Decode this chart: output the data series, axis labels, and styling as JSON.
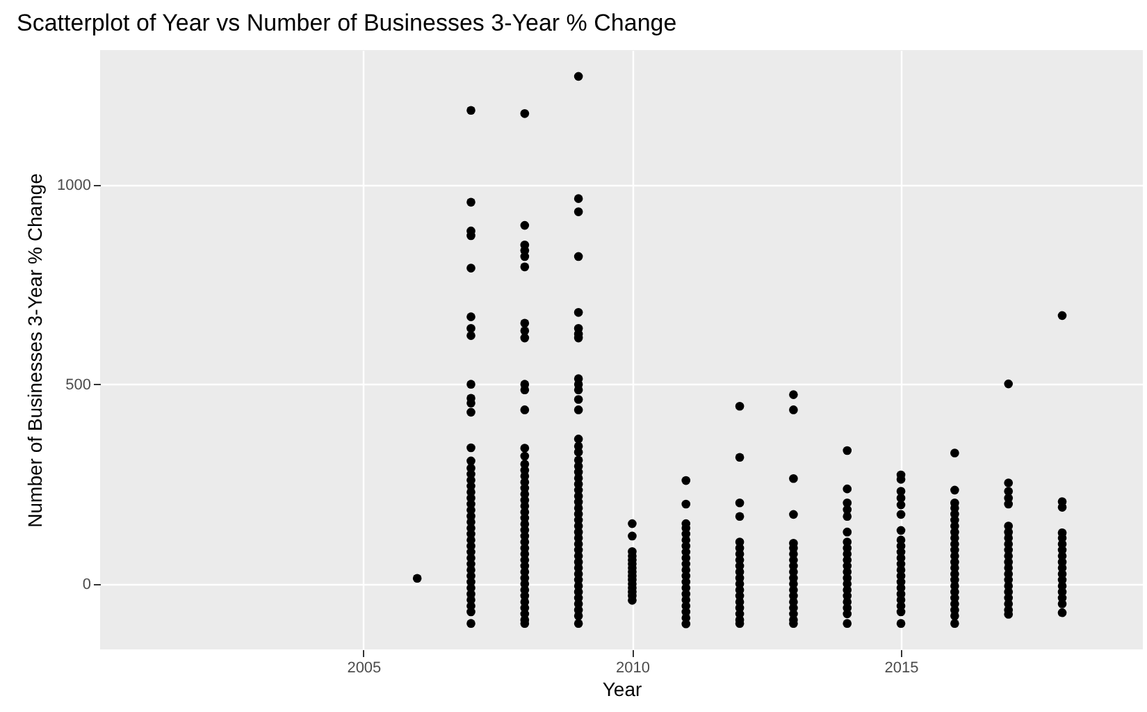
{
  "chart_data": {
    "type": "scatter",
    "title": "Scatterplot of Year vs Number of Businesses 3-Year % Change",
    "xlabel": "Year",
    "ylabel": "Number of Businesses 3-Year % Change",
    "xlim": [
      2000.1,
      2019.5
    ],
    "xticks": [
      2005,
      2010,
      2015
    ],
    "ylim": [
      -164,
      1337
    ],
    "yticks": [
      0,
      500,
      1000
    ],
    "grid": true,
    "marker": "circle",
    "series": [
      {
        "color": "#000000",
        "x": [
          2006
        ],
        "values": [
          14
        ]
      },
      {
        "color": "#000000",
        "x": [
          2007,
          2007,
          2007,
          2007,
          2007,
          2007,
          2007,
          2007,
          2007,
          2007,
          2007,
          2007,
          2007,
          2007,
          2007,
          2007,
          2007,
          2007,
          2007,
          2007,
          2007,
          2007,
          2007,
          2007,
          2007,
          2007,
          2007,
          2007,
          2007,
          2007,
          2007,
          2007,
          2007,
          2007,
          2007,
          2007,
          2007,
          2007,
          2007,
          2007
        ],
        "values": [
          1186,
          956,
          884,
          872,
          791,
          669,
          640,
          622,
          500,
          465,
          453,
          430,
          341,
          308,
          290,
          275,
          260,
          245,
          230,
          215,
          200,
          185,
          170,
          155,
          140,
          125,
          110,
          95,
          80,
          65,
          50,
          35,
          20,
          5,
          -10,
          -25,
          -40,
          -55,
          -70,
          -99
        ]
      },
      {
        "color": "#000000",
        "x": [
          2008,
          2008,
          2008,
          2008,
          2008,
          2008,
          2008,
          2008,
          2008,
          2008,
          2008,
          2008,
          2008,
          2008,
          2008,
          2008,
          2008,
          2008,
          2008,
          2008,
          2008,
          2008,
          2008,
          2008,
          2008,
          2008,
          2008,
          2008,
          2008,
          2008,
          2008,
          2008,
          2008,
          2008,
          2008,
          2008,
          2008,
          2008,
          2008,
          2008,
          2008,
          2008
        ],
        "values": [
          1178,
          898,
          849,
          835,
          820,
          794,
          653,
          634,
          616,
          500,
          486,
          436,
          340,
          320,
          300,
          285,
          270,
          255,
          240,
          225,
          210,
          195,
          180,
          165,
          150,
          135,
          120,
          105,
          90,
          75,
          60,
          45,
          30,
          15,
          0,
          -15,
          -30,
          -45,
          -60,
          -75,
          -90,
          -99
        ]
      },
      {
        "color": "#000000",
        "x": [
          2009,
          2009,
          2009,
          2009,
          2009,
          2009,
          2009,
          2009,
          2009,
          2009,
          2009,
          2009,
          2009,
          2009,
          2009,
          2009,
          2009,
          2009,
          2009,
          2009,
          2009,
          2009,
          2009,
          2009,
          2009,
          2009,
          2009,
          2009,
          2009,
          2009,
          2009,
          2009,
          2009,
          2009,
          2009,
          2009,
          2009,
          2009,
          2009,
          2009,
          2009,
          2009,
          2009,
          2009
        ],
        "values": [
          1271,
          965,
          932,
          820,
          680,
          640,
          626,
          616,
          514,
          500,
          486,
          462,
          436,
          363,
          345,
          330,
          310,
          295,
          280,
          265,
          250,
          235,
          220,
          205,
          190,
          175,
          160,
          145,
          130,
          115,
          100,
          85,
          70,
          55,
          40,
          25,
          10,
          -5,
          -20,
          -35,
          -50,
          -65,
          -80,
          -99
        ]
      },
      {
        "color": "#000000",
        "x": [
          2010,
          2010,
          2010,
          2010,
          2010,
          2010,
          2010,
          2010,
          2010,
          2010,
          2010,
          2010,
          2010,
          2010,
          2010
        ],
        "values": [
          151,
          120,
          81,
          70,
          60,
          50,
          40,
          30,
          20,
          10,
          0,
          -10,
          -20,
          -30,
          -41
        ]
      },
      {
        "color": "#000000",
        "x": [
          2011,
          2011,
          2011,
          2011,
          2011,
          2011,
          2011,
          2011,
          2011,
          2011,
          2011,
          2011,
          2011,
          2011,
          2011,
          2011,
          2011,
          2011,
          2011,
          2011
        ],
        "values": [
          259,
          200,
          151,
          140,
          125,
          110,
          95,
          80,
          65,
          50,
          35,
          20,
          5,
          -10,
          -25,
          -40,
          -55,
          -70,
          -85,
          -100
        ]
      },
      {
        "color": "#000000",
        "x": [
          2012,
          2012,
          2012,
          2012,
          2012,
          2012,
          2012,
          2012,
          2012,
          2012,
          2012,
          2012,
          2012,
          2012,
          2012,
          2012,
          2012,
          2012,
          2012
        ],
        "values": [
          445,
          317,
          203,
          169,
          105,
          90,
          75,
          60,
          45,
          30,
          15,
          0,
          -15,
          -30,
          -45,
          -60,
          -75,
          -90,
          -99
        ]
      },
      {
        "color": "#000000",
        "x": [
          2013,
          2013,
          2013,
          2013,
          2013,
          2013,
          2013,
          2013,
          2013,
          2013,
          2013,
          2013,
          2013,
          2013,
          2013,
          2013,
          2013,
          2013,
          2013
        ],
        "values": [
          474,
          436,
          264,
          174,
          102,
          90,
          75,
          60,
          45,
          30,
          15,
          0,
          -15,
          -30,
          -45,
          -60,
          -75,
          -90,
          -99
        ]
      },
      {
        "color": "#000000",
        "x": [
          2014,
          2014,
          2014,
          2014,
          2014,
          2014,
          2014,
          2014,
          2014,
          2014,
          2014,
          2014,
          2014,
          2014,
          2014,
          2014,
          2014,
          2014,
          2014,
          2014
        ],
        "values": [
          334,
          238,
          203,
          186,
          169,
          130,
          105,
          90,
          75,
          60,
          45,
          30,
          15,
          0,
          -15,
          -30,
          -45,
          -60,
          -75,
          -99
        ]
      },
      {
        "color": "#000000",
        "x": [
          2015,
          2015,
          2015,
          2015,
          2015,
          2015,
          2015,
          2015,
          2015,
          2015,
          2015,
          2015,
          2015,
          2015,
          2015,
          2015,
          2015,
          2015,
          2015,
          2015,
          2015
        ],
        "values": [
          273,
          262,
          232,
          215,
          198,
          174,
          134,
          110,
          95,
          80,
          65,
          50,
          35,
          20,
          5,
          -10,
          -25,
          -40,
          -55,
          -70,
          -99
        ]
      },
      {
        "color": "#000000",
        "x": [
          2016,
          2016,
          2016,
          2016,
          2016,
          2016,
          2016,
          2016,
          2016,
          2016,
          2016,
          2016,
          2016,
          2016,
          2016,
          2016,
          2016,
          2016,
          2016,
          2016,
          2016,
          2016,
          2016
        ],
        "values": [
          328,
          235,
          203,
          190,
          175,
          160,
          145,
          130,
          115,
          100,
          85,
          70,
          55,
          40,
          25,
          10,
          -5,
          -20,
          -35,
          -50,
          -65,
          -80,
          -99
        ]
      },
      {
        "color": "#000000",
        "x": [
          2017,
          2017,
          2017,
          2017,
          2017,
          2017,
          2017,
          2017,
          2017,
          2017,
          2017,
          2017,
          2017,
          2017,
          2017,
          2017,
          2017,
          2017,
          2017,
          2017,
          2017
        ],
        "values": [
          501,
          253,
          232,
          215,
          200,
          145,
          130,
          115,
          100,
          85,
          70,
          55,
          40,
          25,
          10,
          -5,
          -20,
          -35,
          -50,
          -65,
          -76
        ]
      },
      {
        "color": "#000000",
        "x": [
          2018,
          2018,
          2018,
          2018,
          2018,
          2018,
          2018,
          2018,
          2018,
          2018,
          2018,
          2018,
          2018,
          2018,
          2018,
          2018,
          2018
        ],
        "values": [
          672,
          206,
          192,
          128,
          115,
          100,
          85,
          70,
          55,
          40,
          25,
          10,
          -5,
          -20,
          -35,
          -50,
          -72
        ]
      }
    ]
  }
}
